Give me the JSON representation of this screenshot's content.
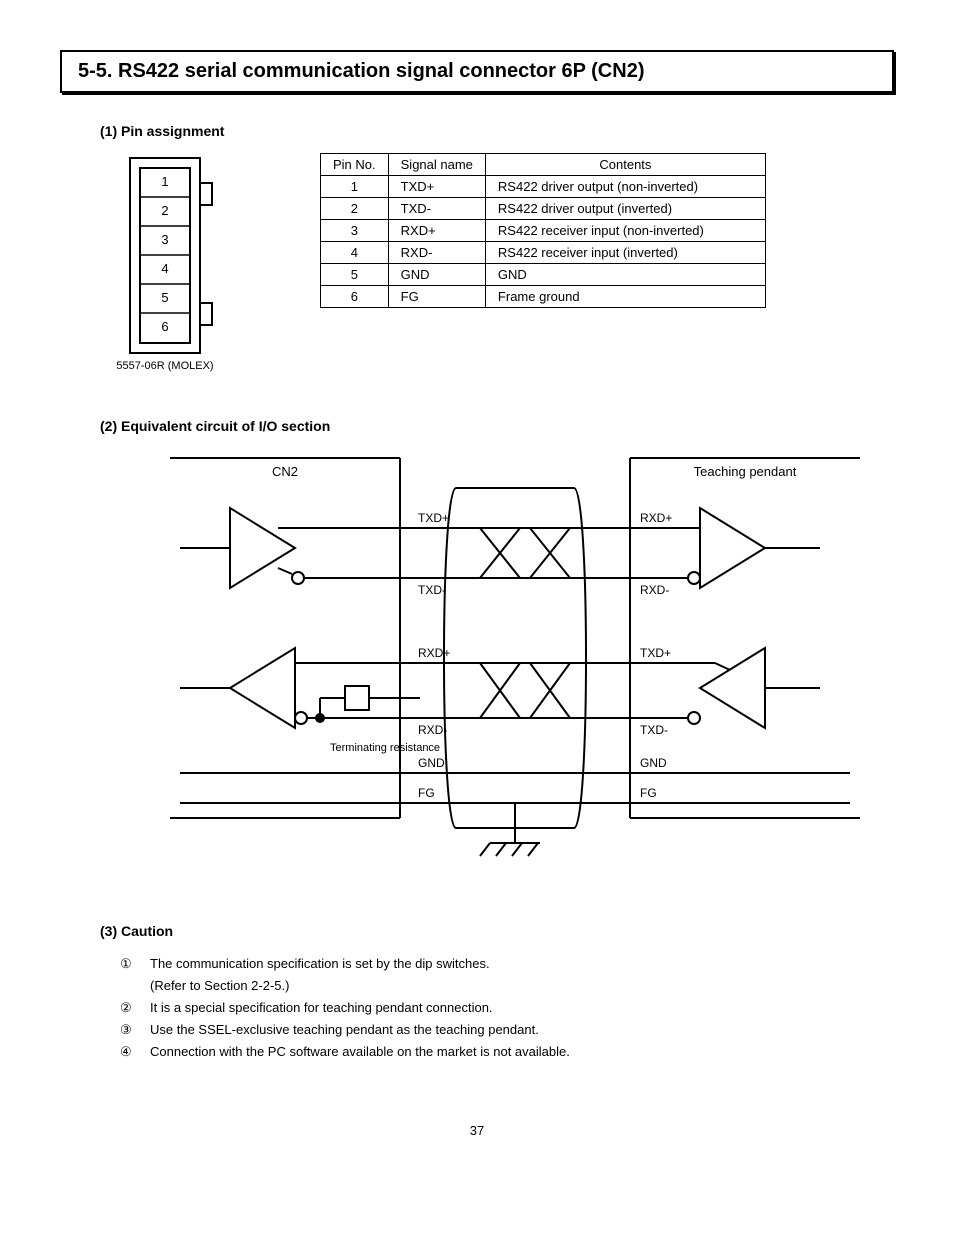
{
  "title": "5-5. RS422 serial communication signal connector  6P (CN2)",
  "pinAssign": {
    "heading": "(1) Pin assignment",
    "connector": {
      "pins": [
        "1",
        "2",
        "3",
        "4",
        "5",
        "6"
      ],
      "label": "5557-06R (MOLEX)"
    },
    "table": {
      "headers": [
        "Pin No.",
        "Signal name",
        "Contents"
      ],
      "rows": [
        [
          "1",
          "TXD+",
          "RS422 driver output (non-inverted)"
        ],
        [
          "2",
          "TXD-",
          "RS422 driver output (inverted)"
        ],
        [
          "3",
          "RXD+",
          "RS422 receiver input (non-inverted)"
        ],
        [
          "4",
          "RXD-",
          "RS422 receiver input (inverted)"
        ],
        [
          "5",
          "GND",
          "GND"
        ],
        [
          "6",
          "FG",
          "Frame ground"
        ]
      ]
    }
  },
  "circuit": {
    "heading": "(2) Equivalent circuit of I/O section",
    "left": {
      "top": "CN2",
      "signals": [
        "TXD+",
        "TXD-",
        "RXD+",
        "RXD-",
        "GND",
        "FG"
      ],
      "termRes": "Terminating resistance"
    },
    "right": {
      "top": "Teaching pendant",
      "signals": [
        "RXD+",
        "RXD-",
        "TXD+",
        "TXD-",
        "GND",
        "FG"
      ]
    }
  },
  "caution": {
    "heading": "(3) Caution",
    "items": [
      {
        "n": "①",
        "t": "The communication specification is set by the dip switches.\n(Refer to Section 2-2-5.)"
      },
      {
        "n": "②",
        "t": "It is a special specification for teaching pendant connection."
      },
      {
        "n": "③",
        "t": "Use the SSEL-exclusive teaching pendant as the teaching pendant."
      },
      {
        "n": "④",
        "t": "Connection with the PC software available on the market is not available."
      }
    ]
  },
  "pageNumber": "37",
  "colors": {
    "line": "#000000",
    "bg": "#ffffff"
  }
}
